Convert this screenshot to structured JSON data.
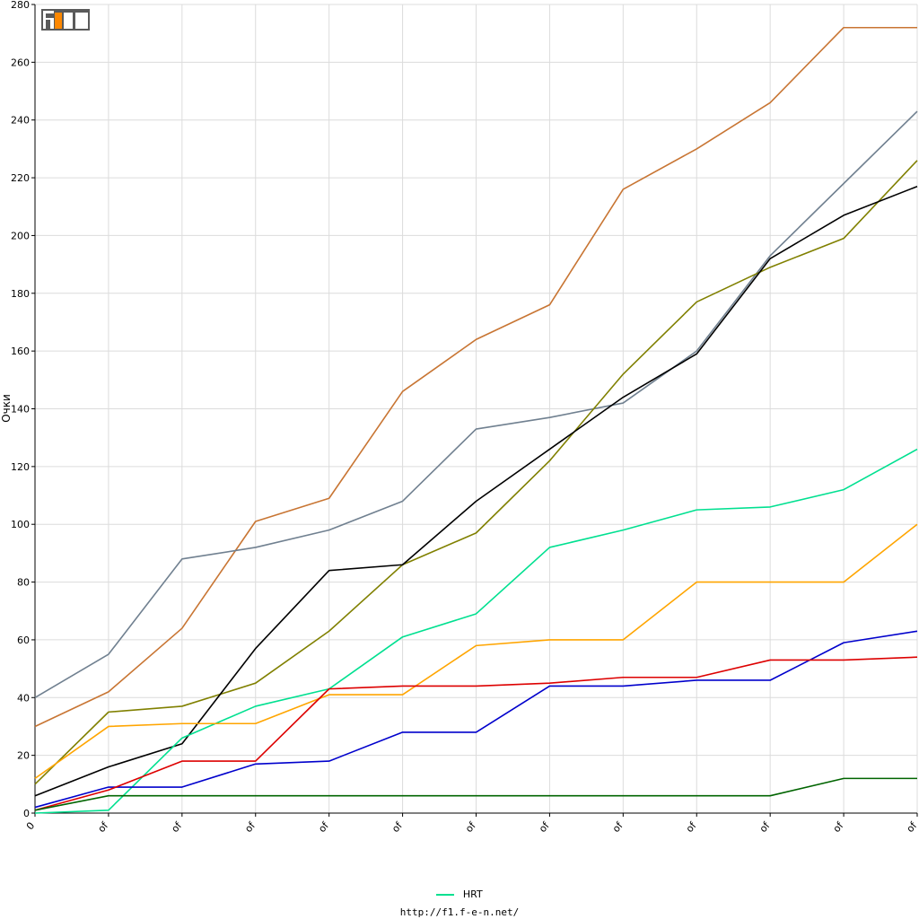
{
  "chart_data": {
    "type": "line",
    "ylabel": "Очки",
    "ylim": [
      0,
      280
    ],
    "y_ticks": [
      0,
      20,
      40,
      60,
      80,
      100,
      120,
      140,
      160,
      180,
      200,
      220,
      240,
      260,
      280
    ],
    "categories": [
      "0",
      "of",
      "of",
      "of",
      "of",
      "of",
      "of",
      "of",
      "of",
      "of",
      "of",
      "of",
      "of"
    ],
    "grid": true,
    "legend_position": "bottom-center",
    "legend": [
      "HRT"
    ],
    "series": [
      {
        "color": "#c87533",
        "values": [
          30,
          42,
          64,
          101,
          109,
          146,
          164,
          176,
          216,
          230,
          246,
          272,
          272
        ]
      },
      {
        "color": "#708090",
        "values": [
          40,
          55,
          88,
          92,
          98,
          108,
          133,
          137,
          142,
          160,
          193,
          218,
          243
        ]
      },
      {
        "color": "#808000",
        "values": [
          10,
          35,
          37,
          45,
          63,
          86,
          97,
          122,
          152,
          177,
          189,
          199,
          226
        ]
      },
      {
        "color": "#000000",
        "values": [
          6,
          16,
          24,
          57,
          84,
          86,
          108,
          126,
          144,
          159,
          192,
          207,
          217
        ]
      },
      {
        "name": "HRT",
        "color": "#00e090",
        "values": [
          0,
          1,
          26,
          37,
          43,
          61,
          69,
          92,
          98,
          105,
          106,
          112,
          126
        ]
      },
      {
        "color": "#ffa500",
        "values": [
          12,
          30,
          31,
          31,
          41,
          41,
          58,
          60,
          60,
          80,
          80,
          80,
          100
        ]
      },
      {
        "color": "#0000cc",
        "values": [
          2,
          9,
          9,
          17,
          18,
          28,
          28,
          44,
          44,
          46,
          46,
          59,
          63
        ]
      },
      {
        "color": "#dd0000",
        "values": [
          1,
          8,
          18,
          18,
          43,
          44,
          44,
          45,
          47,
          47,
          53,
          53,
          54
        ]
      },
      {
        "color": "#006400",
        "values": [
          1,
          6,
          6,
          6,
          6,
          6,
          6,
          6,
          6,
          6,
          6,
          12,
          12
        ]
      }
    ]
  },
  "logo": {
    "text": "F1EN",
    "colors": [
      "#666666",
      "#ff8800"
    ]
  },
  "legend": {
    "label": "HRT"
  },
  "footer": {
    "url": "http://f1.f-e-n.net/"
  }
}
